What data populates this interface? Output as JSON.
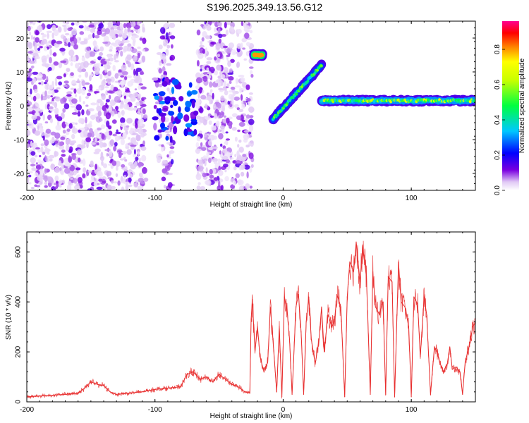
{
  "title": "S196.2025.349.13.56.G12",
  "colorbar": {
    "label": "Normalized spectral amplitude",
    "ticks": [
      "0.0",
      "0.2",
      "0.4",
      "0.6",
      "0.8"
    ],
    "tick_values": [
      0.0,
      0.2,
      0.4,
      0.6,
      0.8
    ],
    "range": [
      0.0,
      0.96
    ]
  },
  "chart_data": [
    {
      "type": "heatmap",
      "title": "",
      "xlabel": "Height of straight line (km)",
      "ylabel": "Frequency (Hz)",
      "xlim": [
        -200,
        150
      ],
      "ylim": [
        -25,
        25
      ],
      "xticks": [
        -200,
        -100,
        0,
        100
      ],
      "xtick_labels": [
        "-200",
        "-100",
        "0",
        "100"
      ],
      "yticks": [
        20,
        10,
        0,
        -10,
        -20
      ],
      "ytick_labels": [
        "20",
        "10",
        "0",
        "-10",
        "-20"
      ],
      "noise_regions": [
        {
          "x_from": -200,
          "x_to": -107,
          "amplitude": 0.08
        },
        {
          "x_from": -97,
          "x_to": -86,
          "amplitude": 0.1
        },
        {
          "x_from": -67,
          "x_to": -24,
          "amplitude": 0.08
        }
      ],
      "features": [
        {
          "name": "cluster",
          "x": [
            -100,
            -68
          ],
          "y": [
            -10,
            8
          ],
          "amplitude": 0.25
        },
        {
          "name": "short segment",
          "x": [
            -23,
            -16
          ],
          "y": [
            15,
            15
          ],
          "amplitude": 0.8
        },
        {
          "name": "rising segment",
          "x": [
            -8,
            30
          ],
          "y": [
            -4,
            12
          ],
          "amplitude": 0.45
        },
        {
          "name": "flat band",
          "x": [
            30,
            150
          ],
          "y": [
            1.5,
            1.5
          ],
          "amplitude": 0.55
        }
      ]
    },
    {
      "type": "line",
      "title": "",
      "xlabel": "Height of straight line (km)",
      "ylabel": "SNR (10 * v/v)",
      "xlim": [
        -200,
        150
      ],
      "ylim": [
        0,
        680
      ],
      "xticks": [
        -200,
        -100,
        0,
        100
      ],
      "xtick_labels": [
        "-200",
        "-100",
        "0",
        "100"
      ],
      "yticks": [
        0,
        200,
        400,
        600
      ],
      "ytick_labels": [
        "0",
        "200",
        "400",
        "600"
      ],
      "series": [
        {
          "name": "SNR",
          "color": "#e83030",
          "x": [
            -200,
            -185,
            -170,
            -160,
            -155,
            -150,
            -145,
            -140,
            -135,
            -130,
            -120,
            -110,
            -100,
            -90,
            -80,
            -75,
            -70,
            -65,
            -60,
            -55,
            -50,
            -45,
            -40,
            -35,
            -30,
            -26,
            -25,
            -24,
            -22,
            -20,
            -18,
            -15,
            -12,
            -10,
            -8,
            -5,
            -3,
            -1,
            1,
            3,
            5,
            7,
            10,
            12,
            14,
            16,
            18,
            20,
            22,
            25,
            28,
            30,
            32,
            35,
            38,
            40,
            42,
            45,
            48,
            50,
            52,
            55,
            57,
            60,
            62,
            65,
            68,
            70,
            72,
            75,
            78,
            80,
            82,
            85,
            87,
            90,
            92,
            95,
            98,
            100,
            102,
            105,
            107,
            110,
            112,
            115,
            118,
            120,
            122,
            125,
            128,
            130,
            132,
            135,
            138,
            140,
            142,
            145,
            148,
            150
          ],
          "values": [
            20,
            25,
            30,
            35,
            55,
            80,
            70,
            65,
            40,
            30,
            35,
            40,
            50,
            55,
            60,
            110,
            120,
            90,
            100,
            80,
            110,
            90,
            70,
            60,
            40,
            35,
            330,
            410,
            200,
            300,
            180,
            120,
            160,
            380,
            250,
            40,
            300,
            20,
            420,
            370,
            250,
            30,
            380,
            430,
            280,
            30,
            320,
            420,
            250,
            150,
            250,
            380,
            200,
            350,
            300,
            320,
            430,
            380,
            20,
            420,
            560,
            520,
            640,
            480,
            620,
            500,
            30,
            520,
            380,
            350,
            400,
            30,
            500,
            480,
            20,
            560,
            400,
            380,
            300,
            20,
            420,
            390,
            180,
            420,
            350,
            30,
            220,
            200,
            160,
            120,
            150,
            220,
            130,
            140,
            120,
            30,
            160,
            220,
            300,
            320
          ]
        }
      ]
    }
  ]
}
